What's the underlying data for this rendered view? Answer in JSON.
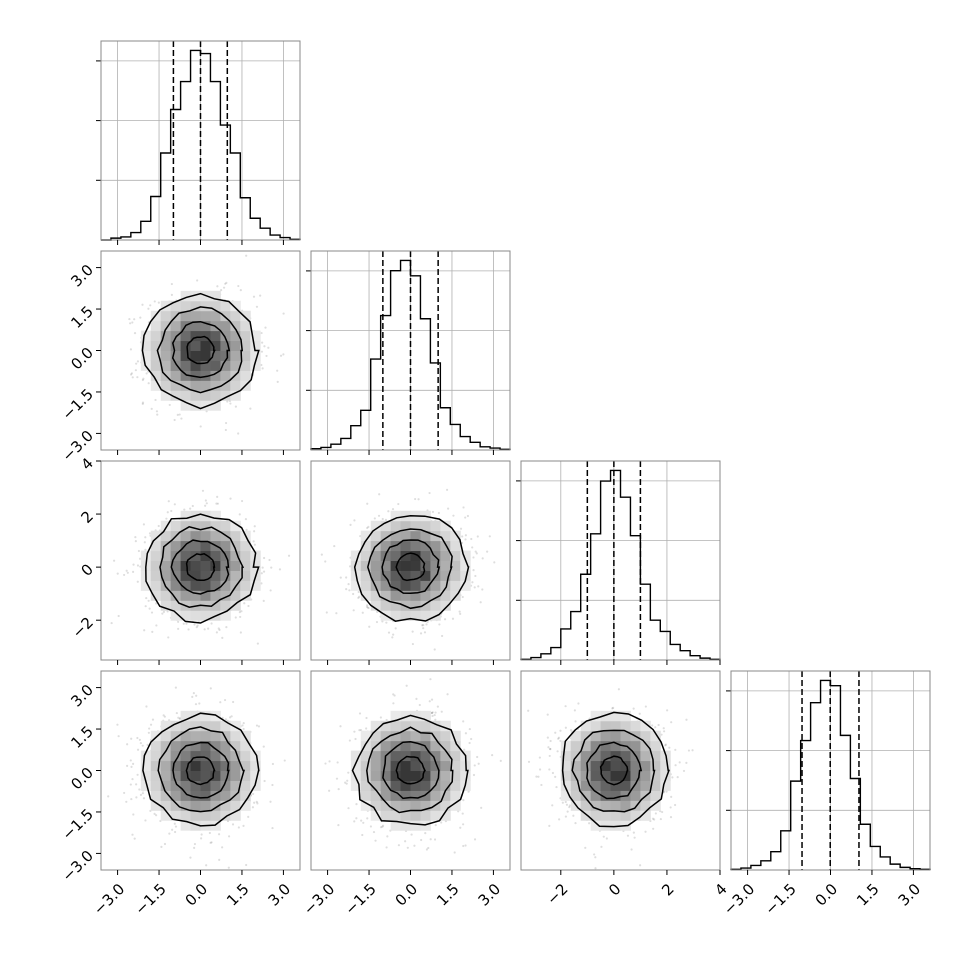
{
  "chart_data": {
    "type": "corner",
    "n_params": 4,
    "quantiles": [
      0.16,
      0.5,
      0.84
    ],
    "histogram_bins": 20,
    "hist_color": "#000000",
    "contour_color": "#000000",
    "grid": true,
    "params": [
      {
        "range": [
          -3.6,
          3.6
        ],
        "ticks": [
          -3.0,
          -1.5,
          0.0,
          1.5,
          3.0
        ],
        "tick_labels": [
          "−3.0",
          "−1.5",
          "0.0",
          "1.5",
          "3.0"
        ],
        "quantile_values": [
          -0.98,
          0.0,
          0.97
        ],
        "histogram": [
          0,
          3,
          5,
          12,
          30,
          70,
          140,
          210,
          255,
          305,
          300,
          255,
          185,
          140,
          68,
          35,
          19,
          8,
          4,
          1
        ]
      },
      {
        "range": [
          -3.6,
          3.6
        ],
        "ticks": [
          -3.0,
          -1.5,
          0.0,
          1.5,
          3.0
        ],
        "tick_labels": [
          "−3.0",
          "−1.5",
          "0.0",
          "1.5",
          "3.0"
        ],
        "quantile_values": [
          -1.0,
          0.0,
          1.0
        ],
        "histogram": [
          2,
          4,
          9,
          18,
          38,
          62,
          142,
          210,
          280,
          296,
          272,
          205,
          136,
          66,
          40,
          21,
          12,
          5,
          3,
          1
        ]
      },
      {
        "range": [
          -3.5,
          4.0
        ],
        "ticks": [
          -2,
          0,
          2,
          4
        ],
        "tick_labels": [
          "−2",
          "0",
          "2",
          "4"
        ],
        "quantile_values": [
          -1.0,
          0.0,
          1.0
        ],
        "histogram": [
          1,
          4,
          10,
          20,
          50,
          78,
          138,
          203,
          288,
          305,
          262,
          200,
          122,
          64,
          46,
          25,
          15,
          7,
          3,
          1
        ]
      },
      {
        "range": [
          -3.6,
          3.6
        ],
        "ticks": [
          -3.0,
          -1.5,
          0.0,
          1.5,
          3.0
        ],
        "tick_labels": [
          "−3.0",
          "−1.5",
          "0.0",
          "1.5",
          "3.0"
        ],
        "quantile_values": [
          -1.03,
          -0.01,
          1.03
        ],
        "histogram": [
          1,
          3,
          7,
          14,
          28,
          60,
          136,
          198,
          256,
          290,
          282,
          206,
          140,
          70,
          36,
          20,
          9,
          4,
          2,
          1
        ]
      }
    ],
    "scatter_pairs": [
      {
        "row": 1,
        "col": 0
      },
      {
        "row": 2,
        "col": 0
      },
      {
        "row": 2,
        "col": 1
      },
      {
        "row": 3,
        "col": 0
      },
      {
        "row": 3,
        "col": 1
      },
      {
        "row": 3,
        "col": 2
      }
    ],
    "contour_levels_sigma": [
      0.5,
      1.0,
      1.5,
      2.0
    ]
  }
}
